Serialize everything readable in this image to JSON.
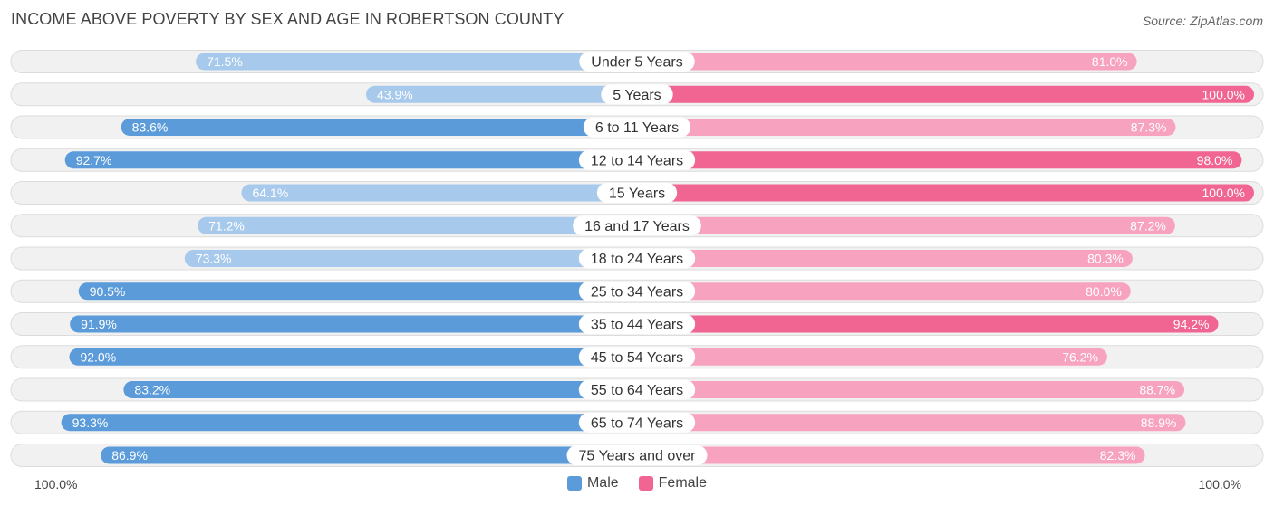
{
  "chart_data": {
    "type": "bar",
    "orientation": "horizontal-diverging",
    "title": "INCOME ABOVE POVERTY BY SEX AND AGE IN ROBERTSON COUNTY",
    "source": "Source: ZipAtlas.com",
    "categories": [
      "Under 5 Years",
      "5 Years",
      "6 to 11 Years",
      "12 to 14 Years",
      "15 Years",
      "16 and 17 Years",
      "18 to 24 Years",
      "25 to 34 Years",
      "35 to 44 Years",
      "45 to 54 Years",
      "55 to 64 Years",
      "65 to 74 Years",
      "75 Years and over"
    ],
    "series": [
      {
        "name": "Male",
        "side": "left",
        "values": [
          71.5,
          43.9,
          83.6,
          92.7,
          64.1,
          71.2,
          73.3,
          90.5,
          91.9,
          92.0,
          83.2,
          93.3,
          86.9
        ],
        "labels": [
          "71.5%",
          "43.9%",
          "83.6%",
          "92.7%",
          "64.1%",
          "71.2%",
          "73.3%",
          "90.5%",
          "91.9%",
          "92.0%",
          "83.2%",
          "93.3%",
          "86.9%"
        ]
      },
      {
        "name": "Female",
        "side": "right",
        "values": [
          81.0,
          100.0,
          87.3,
          98.0,
          100.0,
          87.2,
          80.3,
          80.0,
          94.2,
          76.2,
          88.7,
          88.9,
          82.3
        ],
        "labels": [
          "81.0%",
          "100.0%",
          "87.3%",
          "98.0%",
          "100.0%",
          "87.2%",
          "80.3%",
          "80.0%",
          "94.2%",
          "76.2%",
          "88.7%",
          "88.9%",
          "82.3%"
        ]
      }
    ],
    "xlim": [
      0,
      100
    ],
    "axis_left_label": "100.0%",
    "axis_right_label": "100.0%",
    "legend_position": "bottom-center"
  },
  "colors": {
    "male_strong": "#5b9bd9",
    "male_light": "#a7c9ec",
    "female_strong": "#f06592",
    "female_light": "#f7a3bf",
    "track": "#f1f1f1",
    "track_border": "#dcdcdc"
  }
}
